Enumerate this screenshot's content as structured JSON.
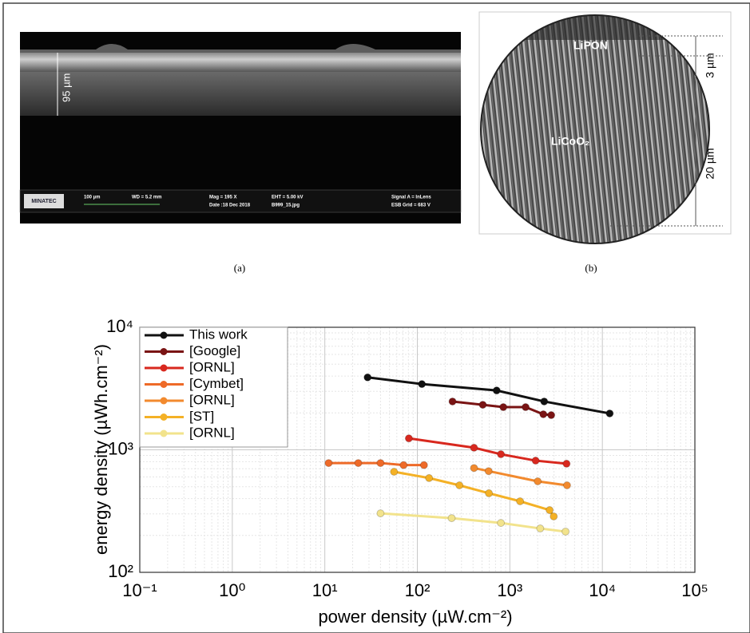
{
  "figure": {
    "panel_a": {
      "caption": "(a)",
      "thickness_label": "95 µm",
      "logo": "MINATEC",
      "scale": "100 µm",
      "wd": "WD = 5.2 mm",
      "mag": "Mag = 195 X",
      "date": "Date :18 Dec 2018",
      "eht": "EHT = 5.00 kV",
      "file": "B999_15.jpg",
      "signal": "Signal A = InLens",
      "grid": "ESB Grid = 683 V"
    },
    "panel_b": {
      "caption": "(b)",
      "top_layer": "LiPON",
      "bottom_layer": "LiCoO₂",
      "top_thickness": "3 µm",
      "bottom_thickness": "20 µm"
    }
  },
  "chart_data": {
    "type": "line",
    "xlabel": "power density (µW.cm⁻²)",
    "ylabel": "energy density (µWh.cm⁻²)",
    "xscale": "log",
    "yscale": "log",
    "grid": true,
    "minor_grid": true,
    "legend": "upper left",
    "xlim": [
      0.1,
      100000
    ],
    "ylim": [
      100,
      10000
    ],
    "xticks": [
      {
        "value": 0.1,
        "label": "10⁻¹"
      },
      {
        "value": 1,
        "label": "10⁰"
      },
      {
        "value": 10,
        "label": "10¹"
      },
      {
        "value": 100,
        "label": "10²"
      },
      {
        "value": 1000,
        "label": "10³"
      },
      {
        "value": 10000,
        "label": "10⁴"
      },
      {
        "value": 100000,
        "label": "10⁵"
      }
    ],
    "yticks": [
      {
        "value": 100,
        "label": "10²"
      },
      {
        "value": 1000,
        "label": "10³"
      },
      {
        "value": 10000,
        "label": "10⁴"
      }
    ],
    "series": [
      {
        "name": "This work",
        "color": "#111111",
        "x": [
          29,
          112,
          720,
          2350,
          12000
        ],
        "values": [
          3900,
          3440,
          3050,
          2480,
          1980
        ]
      },
      {
        "name": "[Google]",
        "color": "#7a1414",
        "x": [
          240,
          510,
          850,
          1480,
          2300,
          2800
        ],
        "values": [
          2480,
          2330,
          2230,
          2230,
          1950,
          1920
        ]
      },
      {
        "name": "[ORNL]",
        "color": "#d8281e",
        "x": [
          81,
          410,
          800,
          1900,
          4100
        ],
        "values": [
          1240,
          1040,
          920,
          816,
          770
        ]
      },
      {
        "name": "[Cymbet]",
        "color": "#ee6a28",
        "x": [
          11,
          23,
          40,
          71,
          118
        ],
        "values": [
          780,
          780,
          780,
          750,
          750
        ]
      },
      {
        "name": "[ORNL]",
        "color": "#f28a2e",
        "x": [
          410,
          590,
          2000,
          4150
        ],
        "values": [
          710,
          670,
          553,
          513
        ]
      },
      {
        "name": "[ST]",
        "color": "#f4b126",
        "x": [
          56,
          134,
          285,
          594,
          1290,
          2690,
          2980
        ],
        "values": [
          662,
          588,
          513,
          442,
          380,
          322,
          286
        ]
      },
      {
        "name": "[ORNL]",
        "color": "#f2e38c",
        "x": [
          40,
          235,
          800,
          2130,
          4000
        ],
        "values": [
          303,
          277,
          253,
          228,
          215
        ]
      }
    ]
  }
}
